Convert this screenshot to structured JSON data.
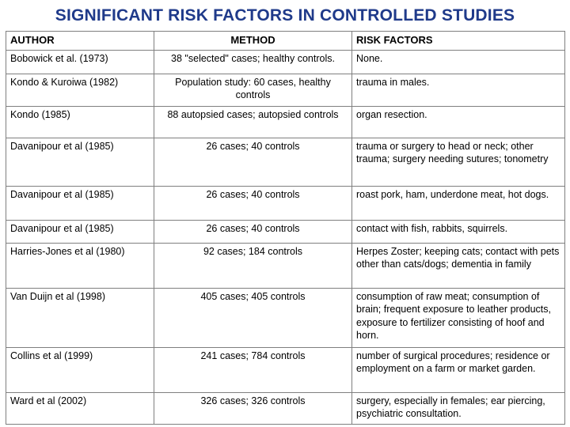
{
  "title": "SIGNIFICANT RISK FACTORS IN CONTROLLED STUDIES",
  "table": {
    "headers": [
      "AUTHOR",
      "METHOD",
      "RISK FACTORS"
    ],
    "rows": [
      {
        "author": "Bobowick et al. (1973)",
        "method": "38 \"selected\" cases; healthy controls.",
        "risk": "None."
      },
      {
        "author": "Kondo & Kuroiwa (1982)",
        "method": "Population study: 60 cases, healthy controls",
        "risk": "trauma in males."
      },
      {
        "author": "Kondo (1985)",
        "method": "88 autopsied cases; autopsied controls",
        "risk": "organ resection."
      },
      {
        "author": "Davanipour et al (1985)",
        "method": "26 cases; 40 controls",
        "risk": "trauma or surgery to head or neck; other trauma; surgery needing sutures; tonometry"
      },
      {
        "author": "Davanipour et al (1985)",
        "method": "26 cases; 40 controls",
        "risk": "roast pork, ham, underdone meat, hot dogs."
      },
      {
        "author": "Davanipour et al (1985)",
        "method": "26 cases; 40 controls",
        "risk": "contact with fish, rabbits, squirrels."
      },
      {
        "author": "Harries-Jones et al (1980)",
        "method": "92 cases; 184 controls",
        "risk": "Herpes Zoster;  keeping cats; contact with pets other than cats/dogs; dementia in family"
      },
      {
        "author": "Van Duijn et al (1998)",
        "method": "405 cases; 405 controls",
        "risk": "consumption of raw meat; consumption of brain; frequent exposure to leather products, exposure to fertilizer consisting of hoof and horn."
      },
      {
        "author": "Collins et al (1999)",
        "method": "241 cases; 784 controls",
        "risk": "number of surgical procedures; residence or employment on a farm or market garden."
      },
      {
        "author": "Ward et al (2002)",
        "method": "326 cases; 326 controls",
        "risk": "surgery, especially in females; ear piercing, psychiatric consultation."
      }
    ]
  }
}
